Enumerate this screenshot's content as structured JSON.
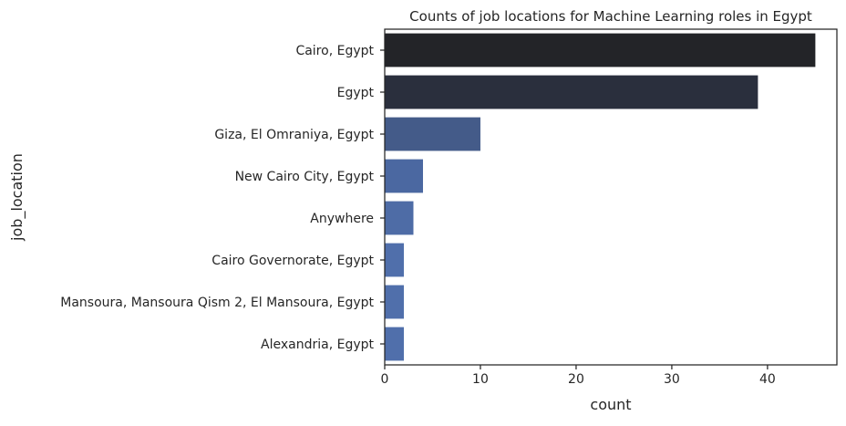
{
  "chart_data": {
    "type": "bar",
    "orientation": "horizontal",
    "title": "Counts of job locations for Machine Learning roles in Egypt",
    "xlabel": "count",
    "ylabel": "job_location",
    "xlim": [
      0,
      47.25
    ],
    "xticks": [
      0,
      10,
      20,
      30,
      40
    ],
    "grid": false,
    "legend": "none",
    "categories": [
      "Cairo, Egypt",
      "Egypt",
      "Giza, El Omraniya, Egypt",
      "New Cairo City, Egypt",
      "Anywhere",
      "Cairo Governorate, Egypt",
      "Mansoura, Mansoura Qism 2, El Mansoura, Egypt",
      "Alexandria, Egypt"
    ],
    "values": [
      45,
      39,
      10,
      4,
      3,
      2,
      2,
      2
    ],
    "colors": [
      "#232428",
      "#2a2f3d",
      "#445b89",
      "#4b68a1",
      "#4e6ca6",
      "#506fab",
      "#506fab",
      "#506fab"
    ]
  }
}
